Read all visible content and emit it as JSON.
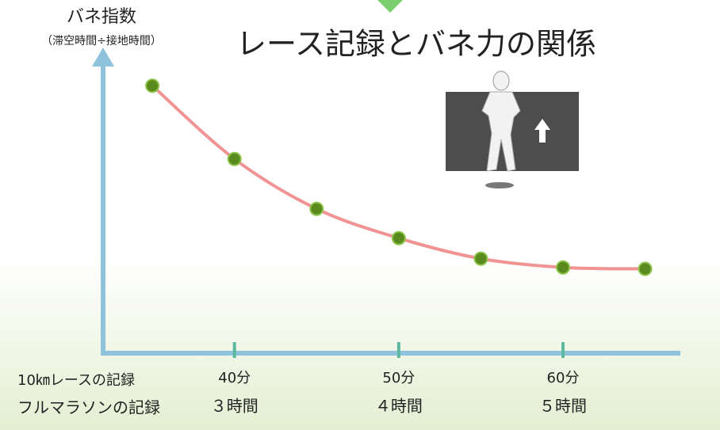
{
  "chart_data": {
    "type": "line",
    "title": "レース記録とバネ力の関係",
    "y_label": "バネ指数",
    "y_sublabel": "（滞空時間÷接地時間）",
    "row_labels": [
      "10㎞レースの記録",
      "フルマラソンの記録"
    ],
    "x": [
      35,
      40,
      45,
      50,
      55,
      60,
      65
    ],
    "values": [
      91,
      66,
      49,
      39,
      32,
      29,
      28.5
    ],
    "color": "#f08080",
    "marker_color": "#5a8a1e",
    "xlim": [
      32,
      67
    ],
    "ylim": [
      0,
      100
    ],
    "xticks": [
      {
        "value": 40,
        "label": "40分"
      },
      {
        "value": 50,
        "label": "50分"
      },
      {
        "value": 60,
        "label": "60分"
      }
    ],
    "marathon_labels": [
      "３時間",
      "４時間",
      "５時間"
    ]
  }
}
